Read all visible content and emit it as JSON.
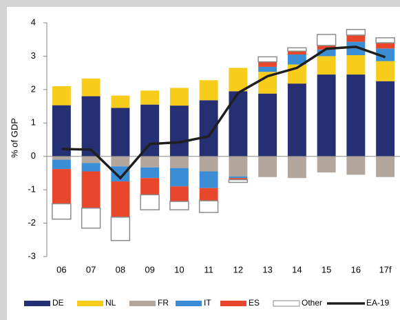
{
  "chart_data": {
    "type": "bar",
    "stacked": true,
    "ylabel": "% of GDP",
    "categories": [
      "06",
      "07",
      "08",
      "09",
      "10",
      "11",
      "12",
      "13",
      "14",
      "15",
      "16",
      "17f"
    ],
    "ylim": [
      -3,
      4
    ],
    "yticks": [
      -3,
      -2,
      -1,
      0,
      1,
      2,
      3,
      4
    ],
    "series": [
      {
        "name": "DE",
        "color": "#252f73",
        "values": [
          1.53,
          1.8,
          1.45,
          1.55,
          1.52,
          1.68,
          1.95,
          1.88,
          2.18,
          2.45,
          2.45,
          2.25
        ]
      },
      {
        "name": "NL",
        "color": "#f8cc1b",
        "values": [
          0.57,
          0.53,
          0.37,
          0.42,
          0.53,
          0.6,
          0.7,
          0.65,
          0.57,
          0.55,
          0.58,
          0.6
        ]
      },
      {
        "name": "FR",
        "color": "#b3a69c",
        "values": [
          -0.1,
          -0.2,
          -0.3,
          -0.33,
          -0.35,
          -0.45,
          -0.6,
          -0.62,
          -0.65,
          -0.48,
          -0.55,
          -0.62
        ]
      },
      {
        "name": "IT",
        "color": "#3b8ed5",
        "values": [
          -0.28,
          -0.25,
          -0.45,
          -0.32,
          -0.55,
          -0.5,
          -0.05,
          0.15,
          0.3,
          0.2,
          0.4,
          0.38
        ]
      },
      {
        "name": "ES",
        "color": "#e8472c",
        "values": [
          -1.04,
          -1.1,
          -1.07,
          -0.5,
          -0.45,
          -0.38,
          -0.05,
          0.15,
          0.1,
          0.12,
          0.2,
          0.17
        ]
      },
      {
        "name": "Other",
        "color": "#ffffff",
        "edgecolor": "#8c8c8c",
        "values": [
          -0.46,
          -0.6,
          -0.7,
          -0.45,
          -0.25,
          -0.35,
          -0.08,
          0.15,
          0.1,
          0.33,
          0.17,
          0.15
        ]
      },
      {
        "name": "EA-19",
        "type": "line",
        "color": "#1f1f1f",
        "values": [
          0.22,
          0.2,
          -0.65,
          0.37,
          0.42,
          0.6,
          1.9,
          2.4,
          2.65,
          3.22,
          3.28,
          2.97
        ]
      }
    ]
  }
}
